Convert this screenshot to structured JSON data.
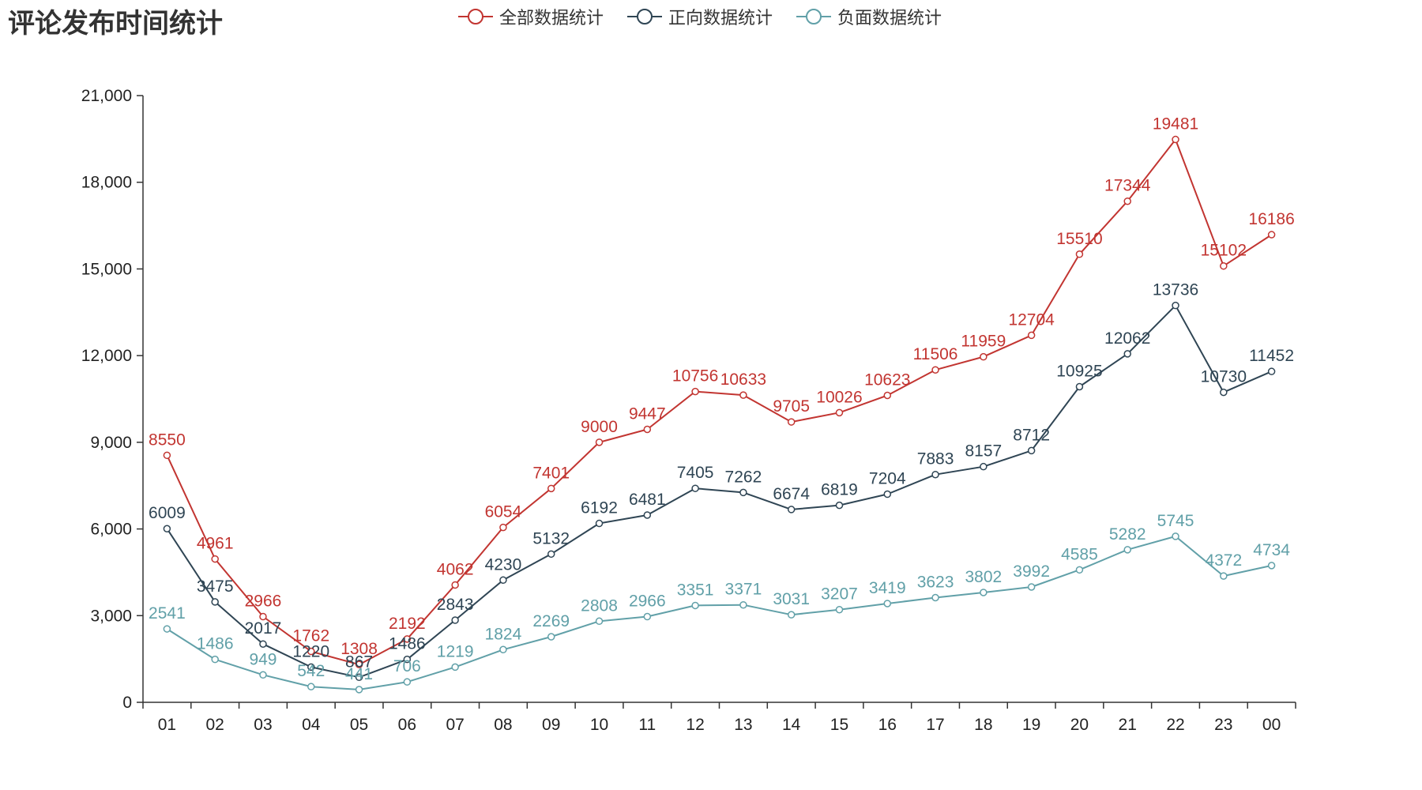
{
  "chart_data": {
    "type": "line",
    "title": "评论发布时间统计",
    "categories": [
      "01",
      "02",
      "03",
      "04",
      "05",
      "06",
      "07",
      "08",
      "09",
      "10",
      "11",
      "12",
      "13",
      "14",
      "15",
      "16",
      "17",
      "18",
      "19",
      "20",
      "21",
      "22",
      "23",
      "00"
    ],
    "ylim": [
      0,
      21000
    ],
    "yticks": [
      0,
      3000,
      6000,
      9000,
      12000,
      15000,
      18000,
      21000
    ],
    "ytick_labels": [
      "0",
      "3,000",
      "6,000",
      "9,000",
      "12,000",
      "15,000",
      "18,000",
      "21,000"
    ],
    "grid": false,
    "legend_position": "top-center",
    "series": [
      {
        "name": "全部数据统计",
        "color": "#c23531",
        "values": [
          8550,
          4961,
          2966,
          1762,
          1308,
          2192,
          4062,
          6054,
          7401,
          9000,
          9447,
          10756,
          10633,
          9705,
          10026,
          10623,
          11506,
          11959,
          12704,
          15510,
          17344,
          19481,
          15102,
          16186
        ]
      },
      {
        "name": "正向数据统计",
        "color": "#2f4554",
        "values": [
          6009,
          3475,
          2017,
          1220,
          867,
          1486,
          2843,
          4230,
          5132,
          6192,
          6481,
          7405,
          7262,
          6674,
          6819,
          7204,
          7883,
          8157,
          8712,
          10925,
          12062,
          13736,
          10730,
          11452
        ]
      },
      {
        "name": "负面数据统计",
        "color": "#61a0a8",
        "values": [
          2541,
          1486,
          949,
          542,
          441,
          706,
          1219,
          1824,
          2269,
          2808,
          2966,
          3351,
          3371,
          3031,
          3207,
          3419,
          3623,
          3802,
          3992,
          4585,
          5282,
          5745,
          4372,
          4734
        ]
      }
    ]
  }
}
